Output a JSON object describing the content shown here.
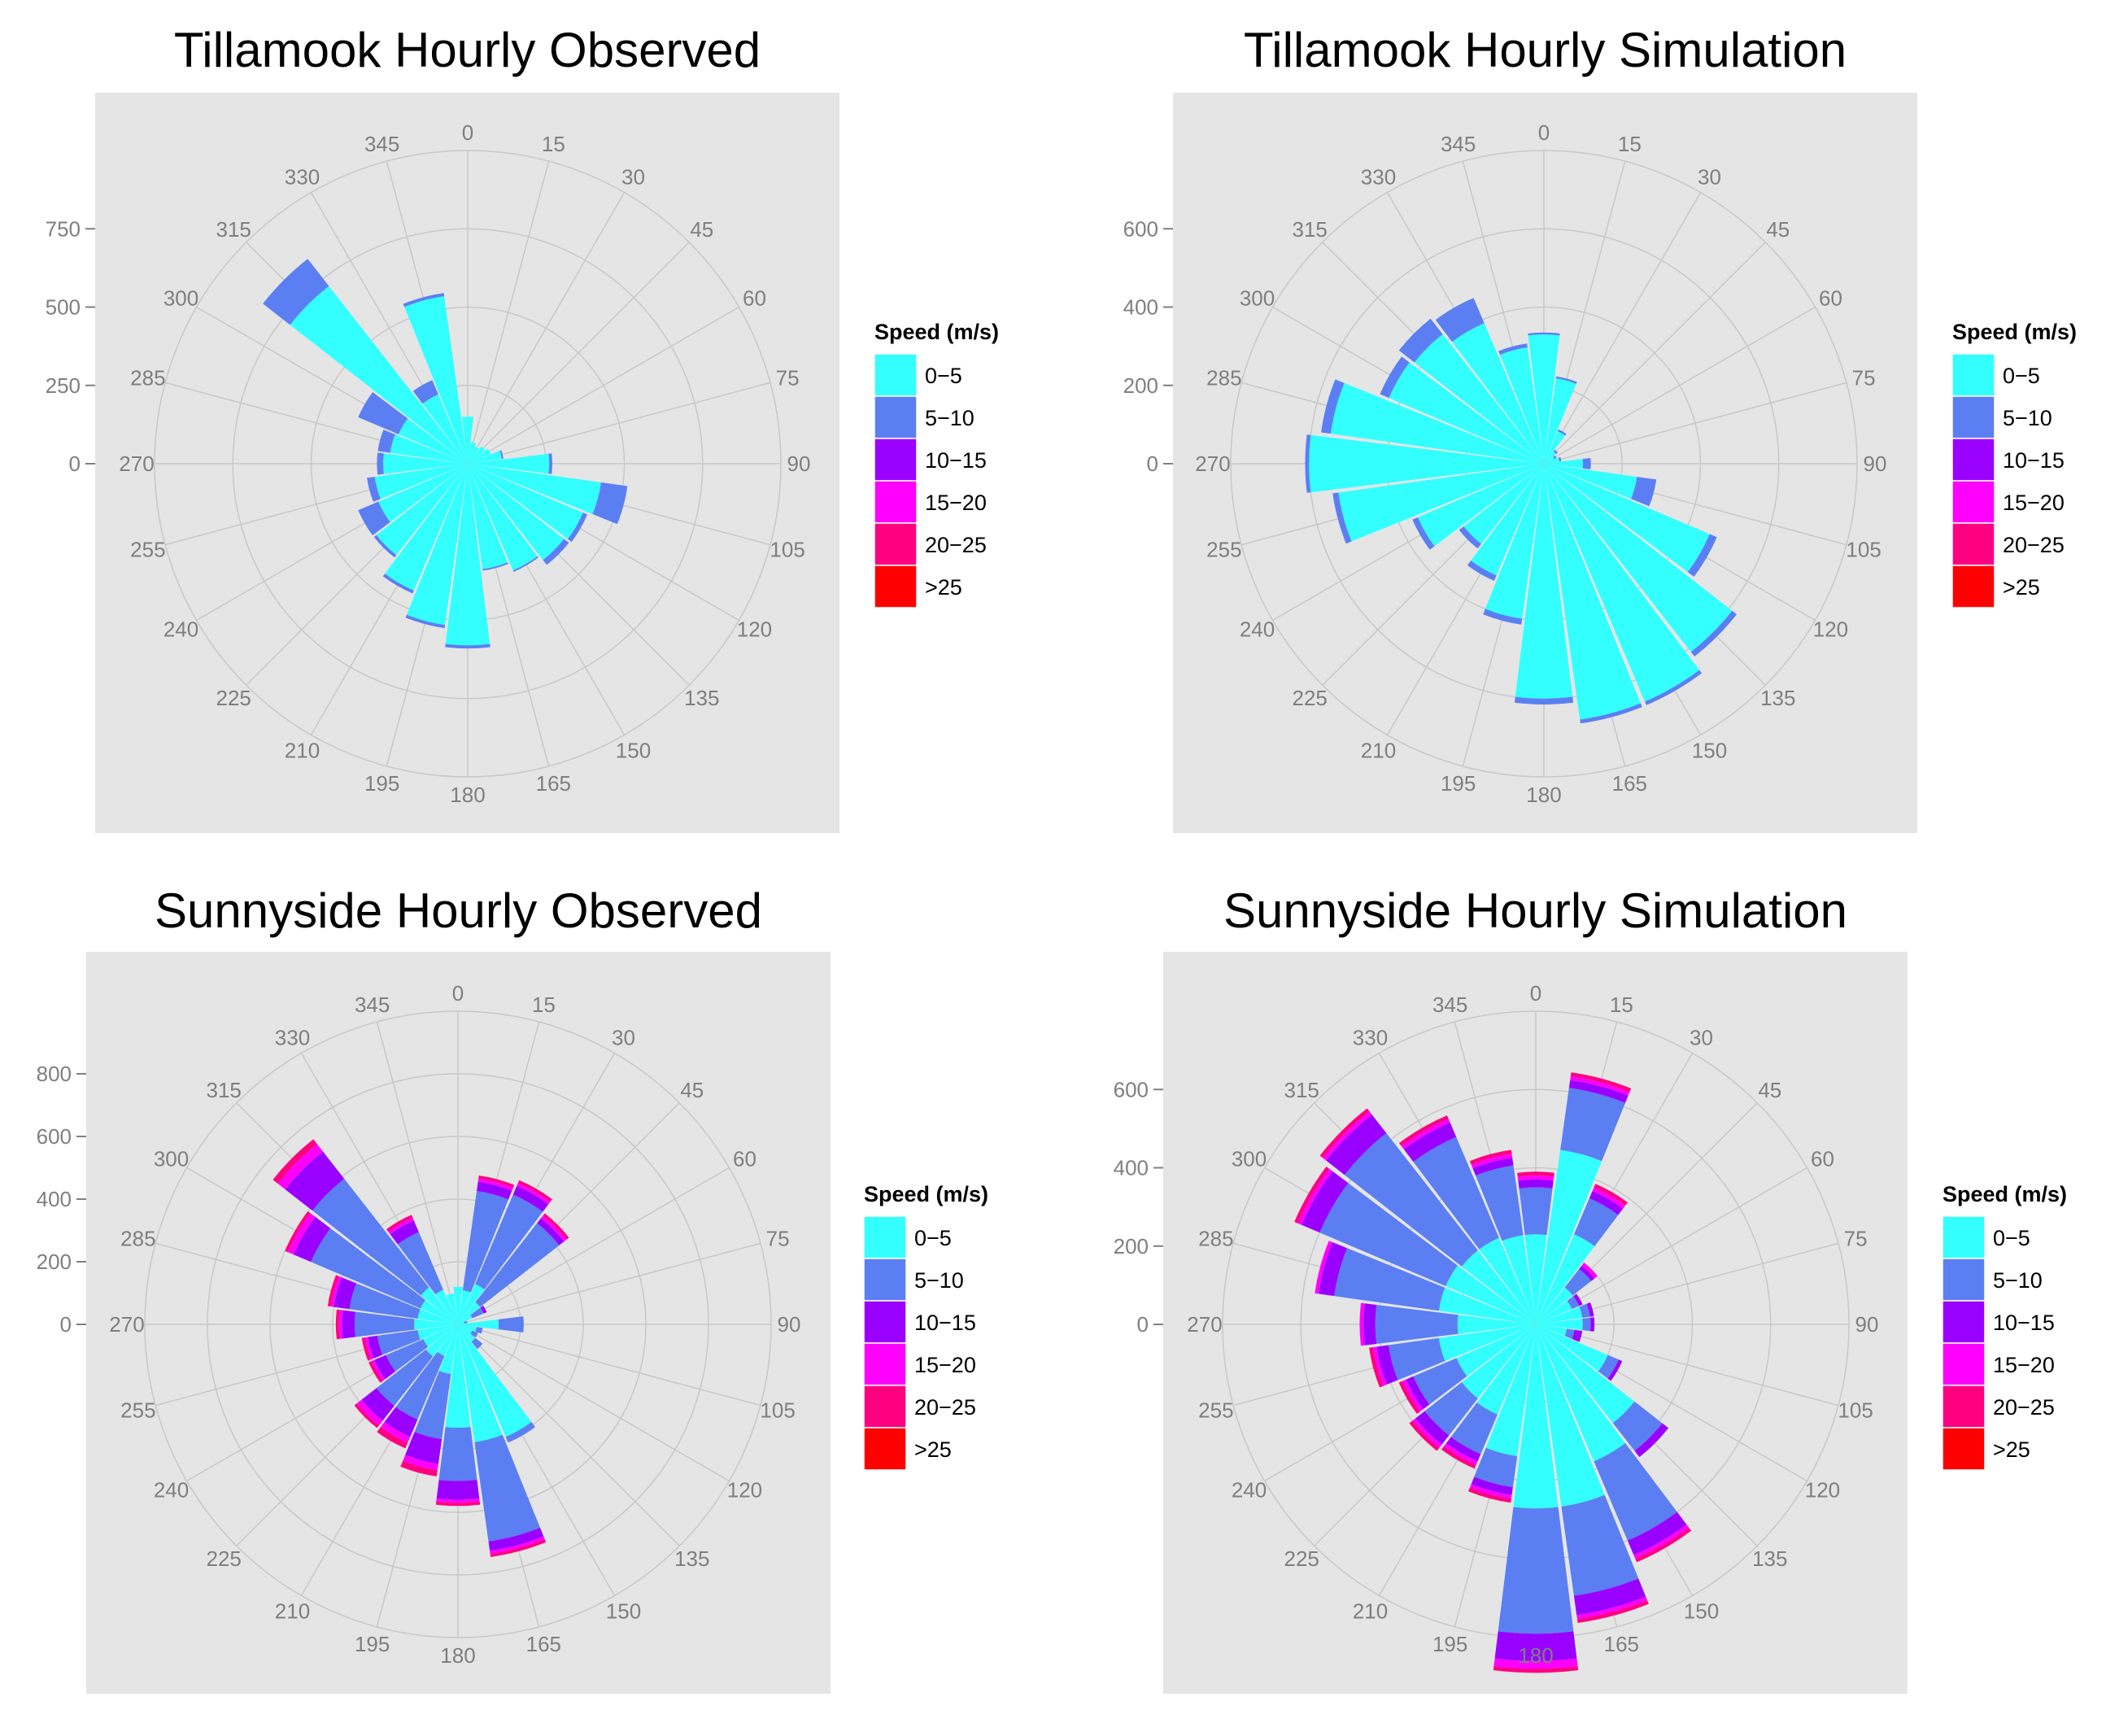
{
  "figure": {
    "legend_title": "Speed (m/s)",
    "speed_bins": [
      "0−5",
      "5−10",
      "10−15",
      "15−20",
      "20−25",
      ">25"
    ],
    "bin_colors": [
      "#33ffff",
      "#5b7ff2",
      "#9900ff",
      "#ff00ff",
      "#ff0080",
      "#ff0000"
    ],
    "panel_bg": "#e5e5e5",
    "grid_color": "#c8c8c8",
    "angle_labels": [
      "0",
      "15",
      "30",
      "45",
      "60",
      "75",
      "90",
      "105",
      "120",
      "135",
      "150",
      "165",
      "180",
      "195",
      "210",
      "225",
      "240",
      "255",
      "270",
      "285",
      "300",
      "315",
      "330",
      "345"
    ]
  },
  "chart_data": [
    {
      "type": "bar",
      "subtype": "polar-stacked-windrose",
      "title": "Tillamook Hourly Observed",
      "directions": [
        0,
        15,
        30,
        45,
        60,
        75,
        90,
        105,
        120,
        135,
        150,
        165,
        180,
        195,
        210,
        225,
        240,
        255,
        270,
        285,
        300,
        315,
        330,
        345
      ],
      "yticks": [
        0,
        250,
        500,
        750
      ],
      "ylim": [
        0,
        1000
      ],
      "series": [
        {
          "name": "0−5",
          "values": [
            150,
            70,
            60,
            70,
            80,
            110,
            260,
            430,
            400,
            390,
            370,
            340,
            580,
            520,
            440,
            370,
            310,
            300,
            270,
            250,
            240,
            720,
            240,
            540
          ]
        },
        {
          "name": "5−10",
          "values": [
            0,
            0,
            0,
            0,
            0,
            5,
            10,
            85,
            15,
            20,
            5,
            5,
            10,
            10,
            10,
            10,
            70,
            25,
            20,
            40,
            140,
            110,
            50,
            10
          ]
        },
        {
          "name": "10−15",
          "values": [
            0,
            0,
            0,
            0,
            0,
            0,
            0,
            0,
            0,
            0,
            0,
            0,
            0,
            0,
            0,
            0,
            0,
            0,
            0,
            0,
            0,
            0,
            0,
            0
          ]
        },
        {
          "name": "15−20",
          "values": [
            0,
            0,
            0,
            0,
            0,
            0,
            0,
            0,
            0,
            0,
            0,
            0,
            0,
            0,
            0,
            0,
            0,
            0,
            0,
            0,
            0,
            0,
            0,
            0
          ]
        },
        {
          "name": "20−25",
          "values": [
            0,
            0,
            0,
            0,
            0,
            0,
            0,
            0,
            0,
            0,
            0,
            0,
            0,
            0,
            0,
            0,
            0,
            0,
            0,
            0,
            0,
            0,
            0,
            0
          ]
        },
        {
          "name": ">25",
          "values": [
            0,
            0,
            0,
            0,
            0,
            0,
            0,
            0,
            0,
            0,
            0,
            0,
            0,
            0,
            0,
            0,
            0,
            0,
            0,
            0,
            0,
            0,
            0,
            0
          ]
        }
      ]
    },
    {
      "type": "bar",
      "subtype": "polar-stacked-windrose",
      "title": "Tillamook Hourly Simulation",
      "directions": [
        0,
        15,
        30,
        45,
        60,
        75,
        90,
        105,
        120,
        135,
        150,
        165,
        180,
        195,
        210,
        225,
        240,
        255,
        270,
        285,
        300,
        315,
        330,
        345
      ],
      "yticks": [
        0,
        200,
        400,
        600
      ],
      "ylim": [
        0,
        800
      ],
      "series": [
        {
          "name": "0−5",
          "values": [
            330,
            220,
            90,
            40,
            30,
            40,
            100,
            240,
            460,
            610,
            660,
            660,
            600,
            400,
            310,
            260,
            350,
            530,
            600,
            550,
            430,
            420,
            390,
            300
          ]
        },
        {
          "name": "5−10",
          "values": [
            5,
            5,
            5,
            5,
            5,
            5,
            20,
            50,
            20,
            15,
            10,
            10,
            15,
            15,
            15,
            15,
            15,
            15,
            10,
            25,
            25,
            50,
            70,
            10
          ]
        },
        {
          "name": "10−15",
          "values": [
            0,
            0,
            0,
            0,
            0,
            0,
            0,
            0,
            0,
            0,
            0,
            0,
            0,
            0,
            0,
            0,
            0,
            0,
            0,
            0,
            0,
            0,
            0,
            0
          ]
        },
        {
          "name": "15−20",
          "values": [
            0,
            0,
            0,
            0,
            0,
            0,
            0,
            0,
            0,
            0,
            0,
            0,
            0,
            0,
            0,
            0,
            0,
            0,
            0,
            0,
            0,
            0,
            0,
            0
          ]
        },
        {
          "name": "20−25",
          "values": [
            0,
            0,
            0,
            0,
            0,
            0,
            0,
            0,
            0,
            0,
            0,
            0,
            0,
            0,
            0,
            0,
            0,
            0,
            0,
            0,
            0,
            0,
            0,
            0
          ]
        },
        {
          "name": ">25",
          "values": [
            0,
            0,
            0,
            0,
            0,
            0,
            0,
            0,
            0,
            0,
            0,
            0,
            0,
            0,
            0,
            0,
            0,
            0,
            0,
            0,
            0,
            0,
            0,
            0
          ]
        }
      ]
    },
    {
      "type": "bar",
      "subtype": "polar-stacked-windrose",
      "title": "Sunnyside Hourly Observed",
      "directions": [
        0,
        15,
        30,
        45,
        60,
        75,
        90,
        105,
        120,
        135,
        150,
        165,
        180,
        195,
        210,
        225,
        240,
        255,
        270,
        285,
        300,
        315,
        330,
        345
      ],
      "yticks": [
        0,
        200,
        400,
        600,
        800
      ],
      "ylim": [
        0,
        1000
      ],
      "series": [
        {
          "name": "0−5",
          "values": [
            120,
            110,
            140,
            90,
            50,
            20,
            130,
            60,
            50,
            70,
            390,
            380,
            330,
            160,
            110,
            130,
            120,
            130,
            140,
            130,
            130,
            150,
            120,
            100
          ]
        },
        {
          "name": "5−10",
          "values": [
            0,
            320,
            310,
            320,
            40,
            10,
            80,
            20,
            20,
            30,
            20,
            320,
            170,
            210,
            220,
            200,
            130,
            130,
            190,
            220,
            380,
            440,
            200,
            0
          ]
        },
        {
          "name": "10−15",
          "values": [
            0,
            30,
            30,
            20,
            10,
            0,
            0,
            0,
            0,
            0,
            0,
            30,
            60,
            80,
            60,
            60,
            40,
            30,
            40,
            50,
            60,
            110,
            40,
            0
          ]
        },
        {
          "name": "15−20",
          "values": [
            0,
            10,
            10,
            10,
            0,
            0,
            0,
            0,
            0,
            0,
            0,
            10,
            10,
            20,
            20,
            20,
            10,
            10,
            10,
            10,
            20,
            30,
            10,
            0
          ]
        },
        {
          "name": "20−25",
          "values": [
            0,
            10,
            10,
            10,
            0,
            0,
            0,
            0,
            0,
            0,
            0,
            10,
            10,
            20,
            20,
            10,
            10,
            10,
            10,
            10,
            10,
            20,
            10,
            0
          ]
        },
        {
          "name": ">25",
          "values": [
            0,
            0,
            0,
            0,
            0,
            0,
            0,
            0,
            0,
            0,
            0,
            0,
            0,
            0,
            0,
            0,
            0,
            0,
            0,
            0,
            0,
            0,
            0,
            0
          ]
        }
      ]
    },
    {
      "type": "bar",
      "subtype": "polar-stacked-windrose",
      "title": "Sunnyside Hourly Simulation",
      "directions": [
        0,
        15,
        30,
        45,
        60,
        75,
        90,
        105,
        120,
        135,
        150,
        165,
        180,
        195,
        210,
        225,
        240,
        255,
        270,
        285,
        300,
        315,
        330,
        345
      ],
      "yticks": [
        0,
        200,
        400,
        600
      ],
      "ylim": [
        0,
        800
      ],
      "series": [
        {
          "name": "0−5",
          "values": [
            230,
            450,
            250,
            120,
            100,
            120,
            120,
            80,
            200,
            320,
            380,
            470,
            470,
            340,
            250,
            240,
            220,
            250,
            200,
            250,
            250,
            240,
            240,
            230
          ]
        },
        {
          "name": "5−10",
          "values": [
            120,
            160,
            100,
            60,
            20,
            20,
            20,
            20,
            30,
            90,
            220,
            230,
            320,
            80,
            110,
            120,
            120,
            130,
            210,
            270,
            350,
            380,
            280,
            180
          ]
        },
        {
          "name": "10−15",
          "values": [
            20,
            20,
            20,
            10,
            10,
            10,
            10,
            20,
            10,
            20,
            40,
            50,
            70,
            20,
            20,
            30,
            20,
            30,
            30,
            40,
            50,
            60,
            40,
            20
          ]
        },
        {
          "name": "15−20",
          "values": [
            10,
            10,
            10,
            10,
            0,
            0,
            0,
            0,
            0,
            0,
            10,
            10,
            20,
            10,
            10,
            10,
            10,
            10,
            10,
            10,
            10,
            10,
            10,
            10
          ]
        },
        {
          "name": "20−25",
          "values": [
            10,
            10,
            10,
            0,
            0,
            0,
            0,
            0,
            0,
            0,
            10,
            10,
            10,
            10,
            10,
            10,
            10,
            10,
            0,
            0,
            10,
            10,
            10,
            10
          ]
        },
        {
          "name": ">25",
          "values": [
            0,
            0,
            0,
            0,
            0,
            0,
            0,
            0,
            0,
            0,
            0,
            0,
            0,
            0,
            0,
            0,
            0,
            0,
            0,
            0,
            0,
            0,
            0,
            0
          ]
        }
      ]
    }
  ]
}
